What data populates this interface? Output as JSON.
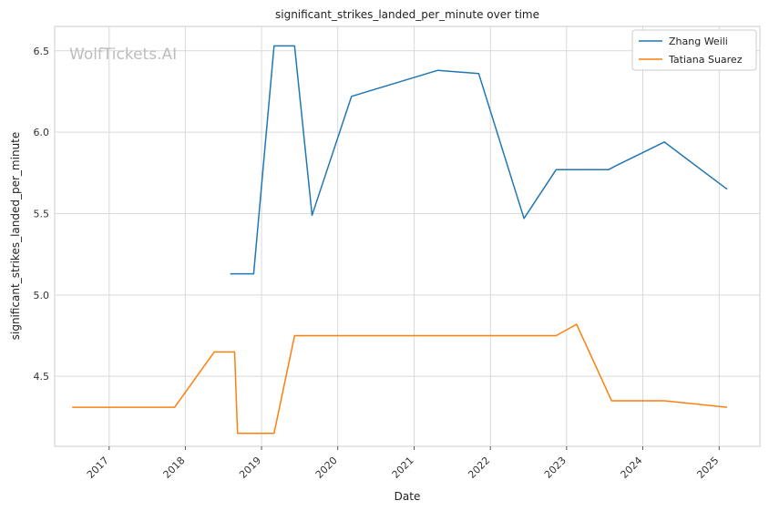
{
  "chart_data": {
    "type": "line",
    "title": "significant_strikes_landed_per_minute over time",
    "xlabel": "Date",
    "ylabel": "significant_strikes_landed_per_minute",
    "watermark": "WolfTickets.AI",
    "xlim": [
      "2016-04-15",
      "2025-07-15"
    ],
    "ylim": [
      4.07,
      6.65
    ],
    "x_ticks": [
      "2017",
      "2018",
      "2019",
      "2020",
      "2021",
      "2022",
      "2023",
      "2024",
      "2025"
    ],
    "y_ticks": [
      "4.5",
      "5.0",
      "5.5",
      "6.0",
      "6.5"
    ],
    "grid": true,
    "legend_position": "top-right",
    "series": [
      {
        "name": "Zhang Weili",
        "color": "#1f77b4",
        "points": [
          [
            "2018-08-04",
            5.13
          ],
          [
            "2018-11-24",
            5.13
          ],
          [
            "2019-03-02",
            6.53
          ],
          [
            "2019-06-08",
            6.53
          ],
          [
            "2019-08-31",
            5.49
          ],
          [
            "2020-03-07",
            6.22
          ],
          [
            "2021-04-24",
            6.38
          ],
          [
            "2021-11-06",
            6.36
          ],
          [
            "2022-06-11",
            5.47
          ],
          [
            "2022-11-12",
            5.77
          ],
          [
            "2023-07-22",
            5.77
          ],
          [
            "2023-08-19",
            5.79
          ],
          [
            "2024-04-13",
            5.94
          ],
          [
            "2025-02-08",
            5.65
          ]
        ]
      },
      {
        "name": "Tatiana Suarez",
        "color": "#ff7f0e",
        "points": [
          [
            "2016-07-08",
            4.31
          ],
          [
            "2017-11-11",
            4.31
          ],
          [
            "2018-05-19",
            4.65
          ],
          [
            "2018-08-25",
            4.65
          ],
          [
            "2018-09-08",
            4.15
          ],
          [
            "2019-03-02",
            4.15
          ],
          [
            "2019-06-08",
            4.75
          ],
          [
            "2022-11-12",
            4.75
          ],
          [
            "2023-02-18",
            4.82
          ],
          [
            "2023-08-05",
            4.35
          ],
          [
            "2024-04-13",
            4.35
          ],
          [
            "2025-02-08",
            4.31
          ]
        ]
      }
    ]
  }
}
